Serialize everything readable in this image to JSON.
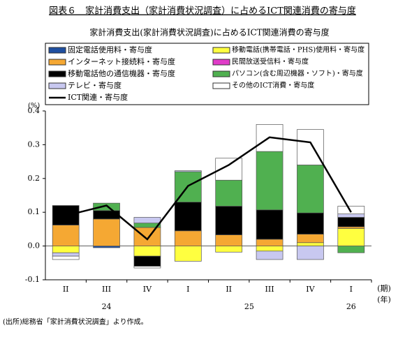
{
  "chart_data": {
    "type": "stacked_bar_line",
    "title": "図表６　家計消費支出（家計消費状況調査）に占めるICT関連消費の寄与度",
    "subtitle": "家計消費支出(家計消費状況調査)に占めるICT関連消費の寄与度",
    "y_label": "(%)",
    "x_label": "(期)",
    "x_group_label": "(年)",
    "source": "(出所)総務省「家計消費状況調査」より作成。",
    "categories": [
      "II",
      "III",
      "IV",
      "I",
      "II",
      "III",
      "IV",
      "I"
    ],
    "x_groups": [
      {
        "label": "24",
        "span": [
          0,
          2
        ]
      },
      {
        "label": "25",
        "span": [
          3,
          6
        ]
      },
      {
        "label": "26",
        "span": [
          7,
          7
        ]
      }
    ],
    "ylim": [
      -0.1,
      0.4
    ],
    "yticks": [
      0.4,
      0.3,
      0.2,
      0.1,
      {
        "value": 0,
        "label": "0.0"
      },
      -0.1
    ],
    "series": [
      {
        "name": "固定電話使用料・寄与度",
        "color": "#1f4fa0",
        "values": [
          0,
          -0.005,
          0,
          0,
          0,
          0,
          0,
          0
        ]
      },
      {
        "name": "移動電話(携帯電話・PHS)使用料・寄与度",
        "color": "#ffff40",
        "values": [
          -0.02,
          0,
          -0.03,
          -0.045,
          -0.018,
          -0.015,
          0.01,
          0.052
        ]
      },
      {
        "name": "インターネット接続料・寄与度",
        "color": "#f5a833",
        "values": [
          0.062,
          0.08,
          0.055,
          0.045,
          0.033,
          0.02,
          0.025,
          0.005
        ]
      },
      {
        "name": "民間放送受信料・寄与度",
        "color": "#e03cc8",
        "values": [
          0,
          0,
          0,
          0,
          0,
          0,
          0,
          0
        ]
      },
      {
        "name": "移動電話他の通信機器・寄与度",
        "color": "#000000",
        "values": [
          0.058,
          0.025,
          -0.03,
          0.085,
          0.085,
          0.087,
          0.063,
          0.028
        ]
      },
      {
        "name": "パソコン(含む周辺機器・ソフト)・寄与度",
        "color": "#50b050",
        "values": [
          0,
          0.022,
          0.013,
          0.09,
          0.077,
          0.173,
          0.142,
          -0.02
        ]
      },
      {
        "name": "テレビ・寄与度",
        "color": "#c8c8f0",
        "values": [
          -0.01,
          0,
          0.017,
          0.003,
          0,
          -0.025,
          -0.04,
          0.01
        ]
      },
      {
        "name": "その他のICT消費・寄与度",
        "color": "#ffffff",
        "values": [
          -0.01,
          0,
          -0.005,
          0,
          0.065,
          0.08,
          0.105,
          0.023
        ]
      }
    ],
    "line": {
      "name": "ICT関連・寄与度",
      "color": "#000000",
      "values": [
        0.09,
        0.12,
        0.02,
        0.178,
        0.24,
        0.322,
        0.307,
        0.1
      ]
    }
  }
}
